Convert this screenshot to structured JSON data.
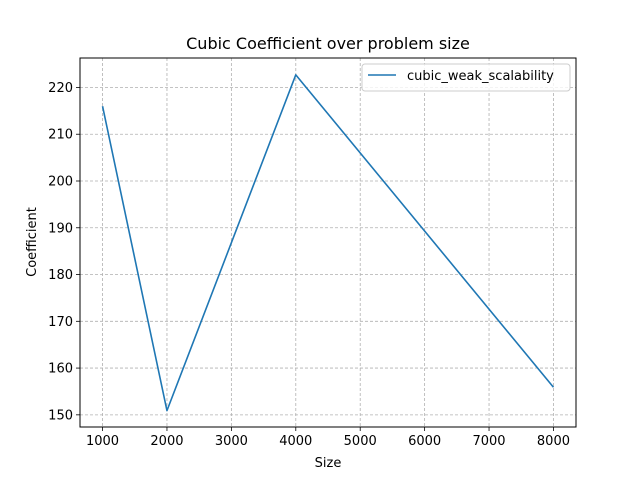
{
  "chart_data": {
    "type": "line",
    "title": "Cubic Coefficient over problem size",
    "xlabel": "Size",
    "ylabel": "Coefficient",
    "xlim": [
      650,
      8350
    ],
    "ylim": [
      147.4,
      226.3
    ],
    "xticks": [
      1000,
      2000,
      3000,
      4000,
      5000,
      6000,
      7000,
      8000
    ],
    "yticks": [
      150,
      160,
      170,
      180,
      190,
      200,
      210,
      220
    ],
    "grid": true,
    "legend_position": "top-right",
    "series": [
      {
        "name": "cubic_weak_scalability",
        "color": "#1f77b4",
        "x": [
          1000,
          2000,
          4000,
          8000
        ],
        "y": [
          216.0,
          150.9,
          222.7,
          155.9
        ]
      }
    ]
  }
}
